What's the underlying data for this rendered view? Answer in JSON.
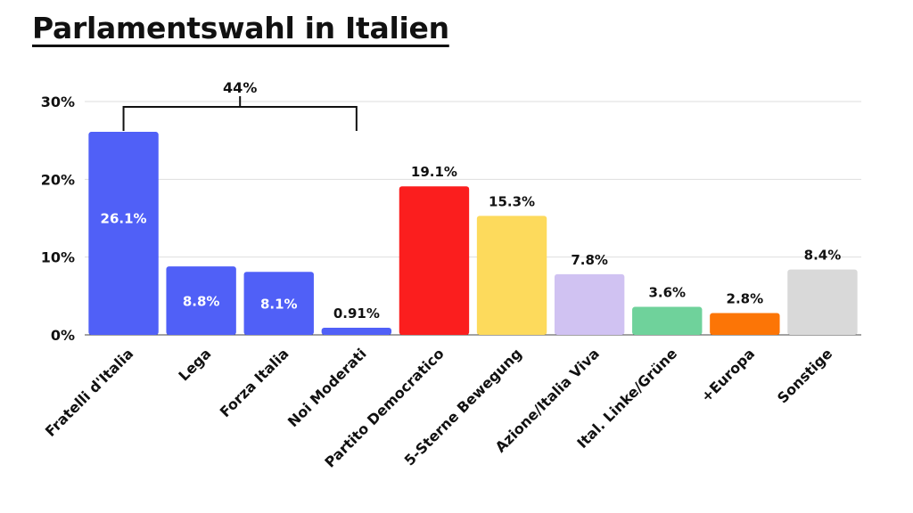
{
  "title": "Parlamentswahl in Italien",
  "chart_data": {
    "type": "bar",
    "title": "Parlamentswahl in Italien",
    "xlabel": "",
    "ylabel": "",
    "ylim": [
      0,
      30
    ],
    "yticks": [
      0,
      10,
      20,
      30
    ],
    "ytick_labels": [
      "0%",
      "10%",
      "20%",
      "30%"
    ],
    "grid": true,
    "categories": [
      "Fratelli d'Italia",
      "Lega",
      "Forza Italia",
      "Noi Moderati",
      "Partito Democratico",
      "5-Sterne Bewegung",
      "Azione/Italia Viva",
      "Ital. Linke/Grüne",
      "+Europa",
      "Sonstige"
    ],
    "values": [
      26.1,
      8.8,
      8.1,
      0.91,
      19.1,
      15.3,
      7.8,
      3.6,
      2.8,
      8.4
    ],
    "value_labels": [
      "26.1%",
      "8.8%",
      "8.1%",
      "0.91%",
      "19.1%",
      "15.3%",
      "7.8%",
      "3.6%",
      "2.8%",
      "8.4%"
    ],
    "colors": [
      "#5060f7",
      "#5060f7",
      "#5060f7",
      "#5060f7",
      "#fb1e1e",
      "#fdda5c",
      "#d0c2f2",
      "#6fd29b",
      "#fc7506",
      "#d9d9d9"
    ],
    "label_inside": [
      true,
      true,
      true,
      false,
      false,
      false,
      false,
      false,
      false,
      false
    ],
    "annotation": {
      "text": "44%",
      "from_index": 0,
      "to_index": 3
    }
  }
}
